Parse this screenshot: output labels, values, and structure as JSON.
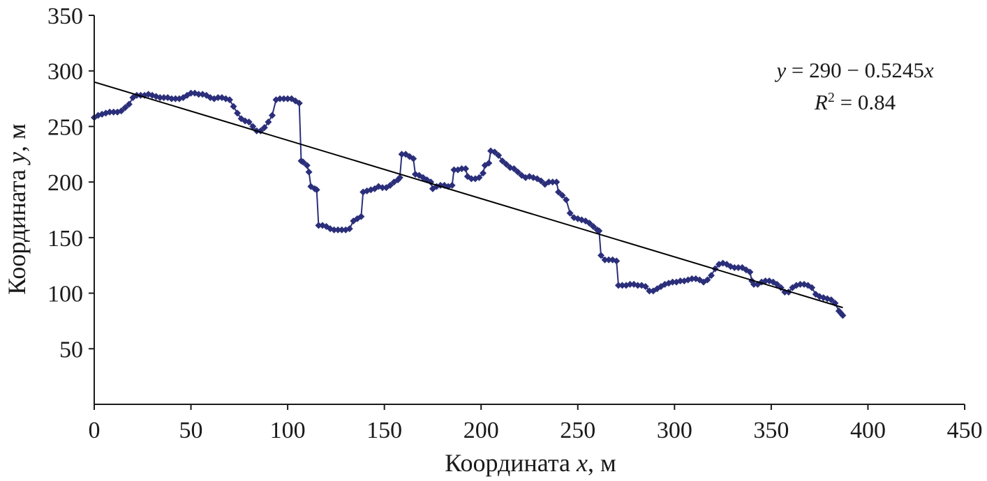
{
  "chart_data": {
    "type": "scatter",
    "xlabel": {
      "prefix": "Координата ",
      "var": "x",
      "suffix": ", м"
    },
    "ylabel": {
      "prefix": "Координата ",
      "var": "y",
      "suffix": ", м"
    },
    "xlim": [
      0,
      450
    ],
    "ylim": [
      0,
      350
    ],
    "xticks": [
      0,
      50,
      100,
      150,
      200,
      250,
      300,
      350,
      400,
      450
    ],
    "yticks": [
      50,
      100,
      150,
      200,
      250,
      300,
      350
    ],
    "grid": false,
    "series": [
      {
        "color": "#2b2f7a",
        "points": [
          [
            0,
            258
          ],
          [
            2,
            260
          ],
          [
            4,
            261
          ],
          [
            6,
            262
          ],
          [
            8,
            263
          ],
          [
            10,
            263
          ],
          [
            12,
            263
          ],
          [
            14,
            264
          ],
          [
            16,
            267
          ],
          [
            18,
            270
          ],
          [
            20,
            276
          ],
          [
            22,
            278
          ],
          [
            24,
            278
          ],
          [
            26,
            278
          ],
          [
            28,
            279
          ],
          [
            30,
            278
          ],
          [
            32,
            277
          ],
          [
            34,
            276
          ],
          [
            36,
            276
          ],
          [
            38,
            276
          ],
          [
            40,
            275
          ],
          [
            42,
            275
          ],
          [
            44,
            275
          ],
          [
            46,
            276
          ],
          [
            48,
            278
          ],
          [
            50,
            280
          ],
          [
            52,
            280
          ],
          [
            54,
            279
          ],
          [
            56,
            279
          ],
          [
            58,
            278
          ],
          [
            60,
            276
          ],
          [
            62,
            275
          ],
          [
            64,
            276
          ],
          [
            66,
            276
          ],
          [
            68,
            275
          ],
          [
            70,
            274
          ],
          [
            72,
            268
          ],
          [
            74,
            262
          ],
          [
            76,
            257
          ],
          [
            78,
            255
          ],
          [
            80,
            254
          ],
          [
            82,
            250
          ],
          [
            84,
            246
          ],
          [
            86,
            246
          ],
          [
            88,
            249
          ],
          [
            90,
            254
          ],
          [
            92,
            260
          ],
          [
            94,
            274
          ],
          [
            96,
            275
          ],
          [
            98,
            275
          ],
          [
            100,
            275
          ],
          [
            102,
            275
          ],
          [
            104,
            273
          ],
          [
            106,
            271
          ],
          [
            107,
            219
          ],
          [
            108,
            218
          ],
          [
            110,
            215
          ],
          [
            111,
            209
          ],
          [
            112,
            196
          ],
          [
            114,
            194
          ],
          [
            115,
            193
          ],
          [
            116,
            161
          ],
          [
            118,
            161
          ],
          [
            120,
            160
          ],
          [
            122,
            158
          ],
          [
            124,
            157
          ],
          [
            126,
            157
          ],
          [
            128,
            157
          ],
          [
            130,
            157
          ],
          [
            132,
            158
          ],
          [
            134,
            165
          ],
          [
            136,
            167
          ],
          [
            138,
            169
          ],
          [
            139,
            191
          ],
          [
            141,
            192
          ],
          [
            143,
            193
          ],
          [
            145,
            194
          ],
          [
            147,
            196
          ],
          [
            149,
            195
          ],
          [
            151,
            195
          ],
          [
            153,
            197
          ],
          [
            155,
            200
          ],
          [
            157,
            202
          ],
          [
            158,
            204
          ],
          [
            159,
            225
          ],
          [
            161,
            225
          ],
          [
            163,
            223
          ],
          [
            165,
            221
          ],
          [
            166,
            207
          ],
          [
            168,
            206
          ],
          [
            170,
            204
          ],
          [
            172,
            202
          ],
          [
            174,
            200
          ],
          [
            175,
            194
          ],
          [
            177,
            196
          ],
          [
            179,
            197
          ],
          [
            181,
            197
          ],
          [
            183,
            196
          ],
          [
            185,
            197
          ],
          [
            186,
            211
          ],
          [
            188,
            211
          ],
          [
            190,
            212
          ],
          [
            192,
            212
          ],
          [
            193,
            205
          ],
          [
            195,
            203
          ],
          [
            197,
            203
          ],
          [
            199,
            204
          ],
          [
            201,
            208
          ],
          [
            202,
            215
          ],
          [
            204,
            217
          ],
          [
            205,
            228
          ],
          [
            207,
            227
          ],
          [
            209,
            224
          ],
          [
            211,
            219
          ],
          [
            213,
            216
          ],
          [
            215,
            213
          ],
          [
            217,
            212
          ],
          [
            219,
            209
          ],
          [
            221,
            206
          ],
          [
            223,
            204
          ],
          [
            225,
            205
          ],
          [
            227,
            204
          ],
          [
            229,
            203
          ],
          [
            231,
            201
          ],
          [
            233,
            198
          ],
          [
            235,
            200
          ],
          [
            237,
            200
          ],
          [
            239,
            200
          ],
          [
            240,
            191
          ],
          [
            242,
            188
          ],
          [
            244,
            184
          ],
          [
            246,
            172
          ],
          [
            248,
            168
          ],
          [
            250,
            167
          ],
          [
            252,
            166
          ],
          [
            254,
            165
          ],
          [
            256,
            163
          ],
          [
            258,
            160
          ],
          [
            260,
            157
          ],
          [
            261,
            156
          ],
          [
            262,
            134
          ],
          [
            264,
            130
          ],
          [
            266,
            130
          ],
          [
            268,
            130
          ],
          [
            270,
            129
          ],
          [
            271,
            107
          ],
          [
            273,
            107
          ],
          [
            275,
            107
          ],
          [
            277,
            108
          ],
          [
            279,
            108
          ],
          [
            281,
            107
          ],
          [
            283,
            107
          ],
          [
            285,
            106
          ],
          [
            287,
            102
          ],
          [
            289,
            102
          ],
          [
            291,
            104
          ],
          [
            293,
            106
          ],
          [
            295,
            108
          ],
          [
            297,
            109
          ],
          [
            299,
            110
          ],
          [
            301,
            110
          ],
          [
            303,
            111
          ],
          [
            305,
            111
          ],
          [
            307,
            112
          ],
          [
            309,
            113
          ],
          [
            311,
            113
          ],
          [
            313,
            112
          ],
          [
            315,
            110
          ],
          [
            317,
            112
          ],
          [
            319,
            116
          ],
          [
            321,
            122
          ],
          [
            323,
            126
          ],
          [
            325,
            127
          ],
          [
            327,
            126
          ],
          [
            329,
            124
          ],
          [
            331,
            123
          ],
          [
            333,
            123
          ],
          [
            335,
            123
          ],
          [
            337,
            121
          ],
          [
            339,
            119
          ],
          [
            340,
            111
          ],
          [
            341,
            108
          ],
          [
            343,
            108
          ],
          [
            345,
            110
          ],
          [
            347,
            111
          ],
          [
            349,
            111
          ],
          [
            351,
            110
          ],
          [
            353,
            108
          ],
          [
            355,
            105
          ],
          [
            357,
            101
          ],
          [
            359,
            101
          ],
          [
            361,
            105
          ],
          [
            363,
            107
          ],
          [
            365,
            108
          ],
          [
            367,
            108
          ],
          [
            369,
            107
          ],
          [
            371,
            105
          ],
          [
            373,
            99
          ],
          [
            375,
            97
          ],
          [
            377,
            96
          ],
          [
            379,
            95
          ],
          [
            381,
            94
          ],
          [
            383,
            91
          ],
          [
            385,
            84
          ],
          [
            386,
            82
          ],
          [
            387,
            80
          ]
        ]
      }
    ],
    "trendline": {
      "equation_parts": [
        "y",
        " = 290 − 0.5245",
        "x"
      ],
      "r2_parts": [
        "R",
        "2",
        " = 0.84"
      ],
      "intercept": 290,
      "slope": -0.5245,
      "x_range": [
        0,
        387
      ],
      "color": "#000000"
    }
  }
}
